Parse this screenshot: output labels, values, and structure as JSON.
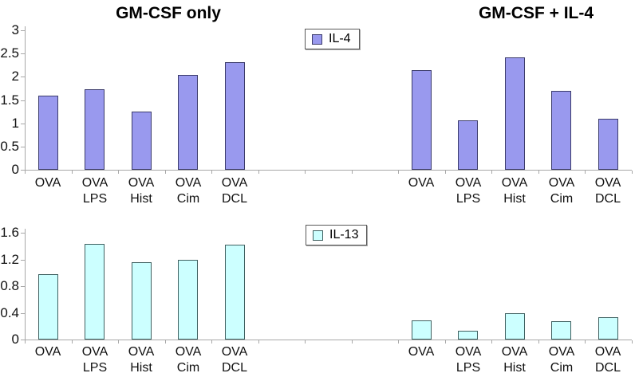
{
  "titles": {
    "left": "GM-CSF only",
    "right": "GM-CSF + IL-4"
  },
  "colors": {
    "il4_fill": "#9999ee",
    "il4_border": "#3b3b6b",
    "il13_fill": "#ccffff",
    "il13_border": "#3f6060",
    "axis": "#a8a8a8",
    "text": "#000000"
  },
  "chart_data": [
    {
      "type": "bar",
      "legend": "IL-4",
      "bar_fill": "#9999ee",
      "bar_border": "#3b3b6b",
      "ylim": [
        0,
        3
      ],
      "yticks": [
        0,
        0.5,
        1,
        1.5,
        2,
        2.5,
        3
      ],
      "grid": false,
      "legend_position": "top-center-left",
      "groups": [
        {
          "name": "GM-CSF only",
          "categories": [
            "OVA",
            "OVA LPS",
            "OVA Hist",
            "OVA Cim",
            "OVA DCL"
          ],
          "values": [
            1.6,
            1.73,
            1.25,
            2.04,
            2.31
          ]
        },
        {
          "name": "GM-CSF + IL-4",
          "categories": [
            "OVA",
            "OVA LPS",
            "OVA Hist",
            "OVA Cim",
            "OVA DCL"
          ],
          "values": [
            2.15,
            1.07,
            2.42,
            1.7,
            1.1
          ]
        }
      ]
    },
    {
      "type": "bar",
      "legend": "IL-13",
      "bar_fill": "#ccffff",
      "bar_border": "#3f6060",
      "ylim": [
        0,
        1.6
      ],
      "yticks": [
        0,
        0.4,
        0.8,
        1.2,
        1.6
      ],
      "grid": false,
      "legend_position": "top-center-left",
      "groups": [
        {
          "name": "GM-CSF only",
          "categories": [
            "OVA",
            "OVA LPS",
            "OVA Hist",
            "OVA Cim",
            "OVA DCL"
          ],
          "values": [
            0.98,
            1.43,
            1.16,
            1.19,
            1.42
          ]
        },
        {
          "name": "GM-CSF + IL-4",
          "categories": [
            "OVA",
            "OVA LPS",
            "OVA Hist",
            "OVA Cim",
            "OVA DCL"
          ],
          "values": [
            0.29,
            0.13,
            0.39,
            0.28,
            0.33
          ]
        }
      ]
    }
  ]
}
